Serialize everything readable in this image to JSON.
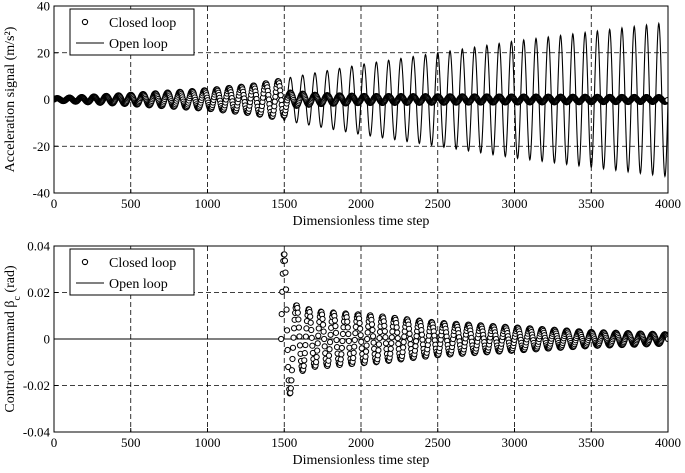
{
  "chart_data": [
    {
      "type": "line",
      "xlabel": "Dimensionless time step",
      "ylabel": "Acceleration signal (m/s²)",
      "xlim": [
        0,
        4000
      ],
      "ylim": [
        -40,
        40
      ],
      "xticks": [
        0,
        500,
        1000,
        1500,
        2000,
        2500,
        3000,
        3500,
        4000
      ],
      "yticks": [
        -40,
        -20,
        0,
        20,
        40
      ],
      "grid": true,
      "grid_style": "dashed",
      "legend": "top-left",
      "series": [
        {
          "name": "Closed loop",
          "marker": "circle",
          "model": "oscillation",
          "period": 80,
          "start": 0,
          "points": [
            [
              0,
              0.5
            ],
            [
              500,
              2
            ],
            [
              1000,
              4
            ],
            [
              1300,
              6
            ],
            [
              1470,
              8
            ],
            [
              1500,
              7
            ],
            [
              1530,
              3
            ],
            [
              1700,
              2
            ],
            [
              2000,
              1.5
            ],
            [
              4000,
              1
            ]
          ],
          "values": [
            [
              0,
              0.0
            ],
            [
              100,
              1.0
            ],
            [
              200,
              1.5
            ],
            [
              300,
              1.7
            ],
            [
              400,
              1.6
            ],
            [
              500,
              2.1
            ],
            [
              700,
              2.9
            ],
            [
              900,
              3.6
            ],
            [
              1100,
              4.6
            ],
            [
              1300,
              6.2
            ],
            [
              1450,
              7.8
            ],
            [
              1500,
              5.5
            ],
            [
              1550,
              2.9
            ],
            [
              2000,
              1.5
            ],
            [
              3000,
              1.0
            ],
            [
              4000,
              1.0
            ]
          ]
        },
        {
          "name": "Open loop",
          "marker": "none",
          "model": "oscillation",
          "period": 80,
          "start": 0,
          "points": [
            [
              0,
              0.5
            ],
            [
              500,
              2
            ],
            [
              1000,
              4
            ],
            [
              1300,
              6
            ],
            [
              1470,
              8
            ],
            [
              1500,
              9
            ],
            [
              2000,
              15
            ],
            [
              2500,
              20
            ],
            [
              3000,
              25
            ],
            [
              3500,
              29
            ],
            [
              4000,
              33
            ]
          ],
          "values": [
            [
              0,
              0.0
            ],
            [
              300,
              1.7
            ],
            [
              500,
              2.1
            ],
            [
              900,
              3.6
            ],
            [
              1300,
              6.2
            ],
            [
              1500,
              9.0
            ],
            [
              1750,
              12.0
            ],
            [
              2000,
              15.0
            ],
            [
              2250,
              17.5
            ],
            [
              2500,
              20.0
            ],
            [
              2750,
              22.5
            ],
            [
              3000,
              25.0
            ],
            [
              3250,
              27.0
            ],
            [
              3500,
              29.0
            ],
            [
              3750,
              31.0
            ],
            [
              4000,
              33.0
            ]
          ]
        }
      ]
    },
    {
      "type": "line",
      "xlabel": "Dimensionless time step",
      "ylabel": "Control command β",
      "ylabel_subscript": "c",
      "ylabel_unit": " (rad)",
      "xlim": [
        0,
        4000
      ],
      "ylim": [
        -0.04,
        0.04
      ],
      "xticks": [
        0,
        500,
        1000,
        1500,
        2000,
        2500,
        3000,
        3500,
        4000
      ],
      "yticks": [
        -0.04,
        -0.02,
        0,
        0.02,
        0.04
      ],
      "grid": true,
      "grid_style": "dashed",
      "legend": "top-left",
      "series": [
        {
          "name": "Closed loop",
          "marker": "circle",
          "model": "oscillation",
          "period": 80,
          "start": 1480,
          "points": [
            [
              1480,
              0.04
            ],
            [
              1510,
              0.035
            ],
            [
              1560,
              0.015
            ],
            [
              1700,
              0.012
            ],
            [
              1900,
              0.011
            ],
            [
              2100,
              0.01
            ],
            [
              2500,
              0.007
            ],
            [
              3000,
              0.005
            ],
            [
              3500,
              0.003
            ],
            [
              4000,
              0.002
            ]
          ],
          "values": [
            [
              1500,
              -0.038
            ],
            [
              1520,
              -0.02
            ],
            [
              1560,
              0.008
            ],
            [
              1590,
              0.016
            ],
            [
              1650,
              0.012
            ],
            [
              1700,
              0.01
            ],
            [
              2000,
              0.0095
            ],
            [
              2500,
              0.0065
            ],
            [
              3000,
              0.005
            ],
            [
              3500,
              0.003
            ],
            [
              4000,
              0.002
            ]
          ]
        },
        {
          "name": "Open loop",
          "marker": "none",
          "model": "constant",
          "points": [
            [
              0,
              0
            ],
            [
              4000,
              0
            ]
          ],
          "values": [
            [
              0,
              0.0
            ],
            [
              4000,
              0.0
            ]
          ]
        }
      ]
    }
  ]
}
